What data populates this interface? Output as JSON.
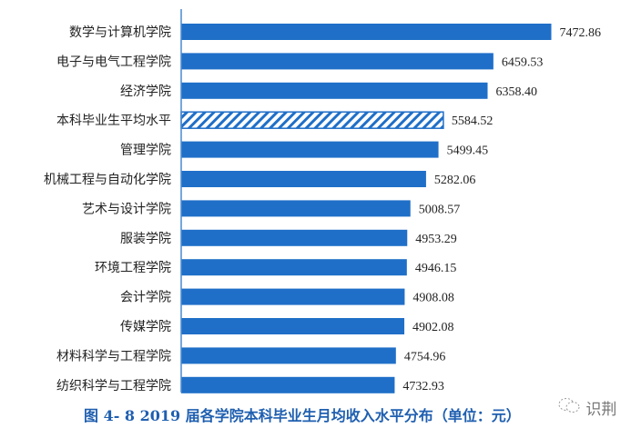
{
  "chart_data": {
    "type": "bar",
    "orientation": "horizontal",
    "title": "图 4- 8   2019 届各学院本科毕业生月均收入水平分布（单位：元）",
    "categories": [
      "数学与计算机学院",
      "电子与电气工程学院",
      "经济学院",
      "本科毕业生平均水平",
      "管理学院",
      "机械工程与自动化学院",
      "艺术与设计学院",
      "服装学院",
      "环境工程学院",
      "会计学院",
      "传媒学院",
      "材料科学与工程学院",
      "纺织科学与工程学院"
    ],
    "values": [
      7472.86,
      6459.53,
      6358.4,
      5584.52,
      5499.45,
      5282.06,
      5008.57,
      4953.29,
      4946.15,
      4908.08,
      4902.08,
      4754.96,
      4732.93
    ],
    "value_labels": [
      "7472.86",
      "6459.53",
      "6358.40",
      "5584.52",
      "5499.45",
      "5282.06",
      "5008.57",
      "4953.29",
      "4946.15",
      "4908.08",
      "4902.08",
      "4754.96",
      "4732.93"
    ],
    "highlight_category": "本科毕业生平均水平",
    "highlight_style": "hatched",
    "xlim": [
      1000,
      7600
    ],
    "grid": false,
    "colors": {
      "bar": "#1f6fc8",
      "hatch": "#1f6fc8",
      "axis": "#4a8ad0",
      "caption": "#1f5fb0"
    }
  },
  "watermark": {
    "text": "识荆",
    "icon": "wechat-icon"
  }
}
